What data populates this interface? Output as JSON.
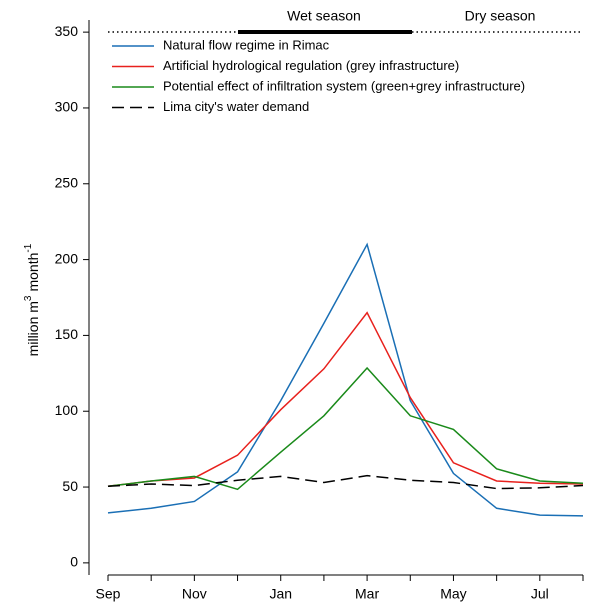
{
  "chart_data": {
    "type": "line",
    "ylabel": [
      "million m",
      "3",
      "month",
      "-1"
    ],
    "annotations": [
      "Wet season",
      "Dry season"
    ],
    "categories": [
      "Sep",
      null,
      "Nov",
      null,
      "Jan",
      null,
      "Mar",
      null,
      "May",
      null,
      "Jul",
      null
    ],
    "series": [
      {
        "name": "Natural flow regime in Rimac",
        "color": "#1a6fb5",
        "linestyle": "solid",
        "values": [
          33,
          36,
          40.5,
          60,
          107,
          158,
          210,
          107,
          59,
          36,
          31.5,
          31
        ]
      },
      {
        "name": "Artificial hydrological regulation (grey infrastructure)",
        "color": "#e8211d",
        "linestyle": "solid",
        "values": [
          50.5,
          54,
          56,
          71,
          101,
          128,
          165,
          109,
          66,
          54,
          52.5,
          52
        ]
      },
      {
        "name": "Potential effect of infiltration system (green+grey infrastructure)",
        "color": "#1a8a1a",
        "linestyle": "solid",
        "values": [
          50.5,
          54,
          57,
          48.5,
          73,
          97,
          128.5,
          97,
          88,
          62,
          54,
          52.5
        ]
      },
      {
        "name": "Lima city's water demand",
        "color": "#000000",
        "linestyle": "dashed",
        "values": [
          50.5,
          52,
          51,
          54.5,
          57,
          53,
          57.5,
          54.5,
          53,
          49,
          49.5,
          51
        ]
      }
    ],
    "ylim": [
      -8,
      358
    ],
    "yticks": [
      0,
      50,
      100,
      150,
      200,
      250,
      300,
      350
    ],
    "legend": "upper-left"
  }
}
